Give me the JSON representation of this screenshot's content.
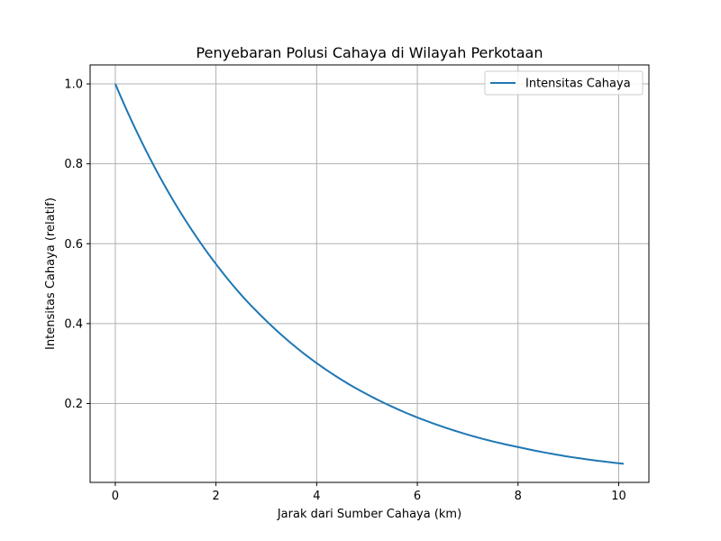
{
  "chart_data": {
    "type": "line",
    "title": "Penyebaran Polusi Cahaya di Wilayah Perkotaan",
    "xlabel": "Jarak dari Sumber Cahaya (km)",
    "ylabel": "Intensitas Cahaya (relatif)",
    "xlim": [
      -0.5,
      10.6
    ],
    "ylim": [
      0.0025,
      1.0475
    ],
    "xticks": [
      0,
      2,
      4,
      6,
      8,
      10
    ],
    "xtick_labels": [
      "0",
      "2",
      "4",
      "6",
      "8",
      "10"
    ],
    "yticks": [
      0.2,
      0.4,
      0.6,
      0.8,
      1.0
    ],
    "ytick_labels": [
      "0.2",
      "0.4",
      "0.6",
      "0.8",
      "1.0"
    ],
    "grid": true,
    "legend_position": "top-right",
    "series": [
      {
        "name": "Intensitas Cahaya",
        "color": "#1f77b4",
        "x": [
          0,
          0.5,
          1,
          1.5,
          2,
          2.5,
          3,
          3.5,
          4,
          4.5,
          5,
          5.5,
          6,
          6.5,
          7,
          7.5,
          8,
          8.5,
          9,
          9.5,
          10.1
        ],
        "y": [
          1.0,
          0.861,
          0.741,
          0.638,
          0.549,
          0.472,
          0.407,
          0.35,
          0.301,
          0.259,
          0.223,
          0.192,
          0.165,
          0.142,
          0.122,
          0.105,
          0.091,
          0.078,
          0.067,
          0.058,
          0.049
        ]
      }
    ]
  }
}
